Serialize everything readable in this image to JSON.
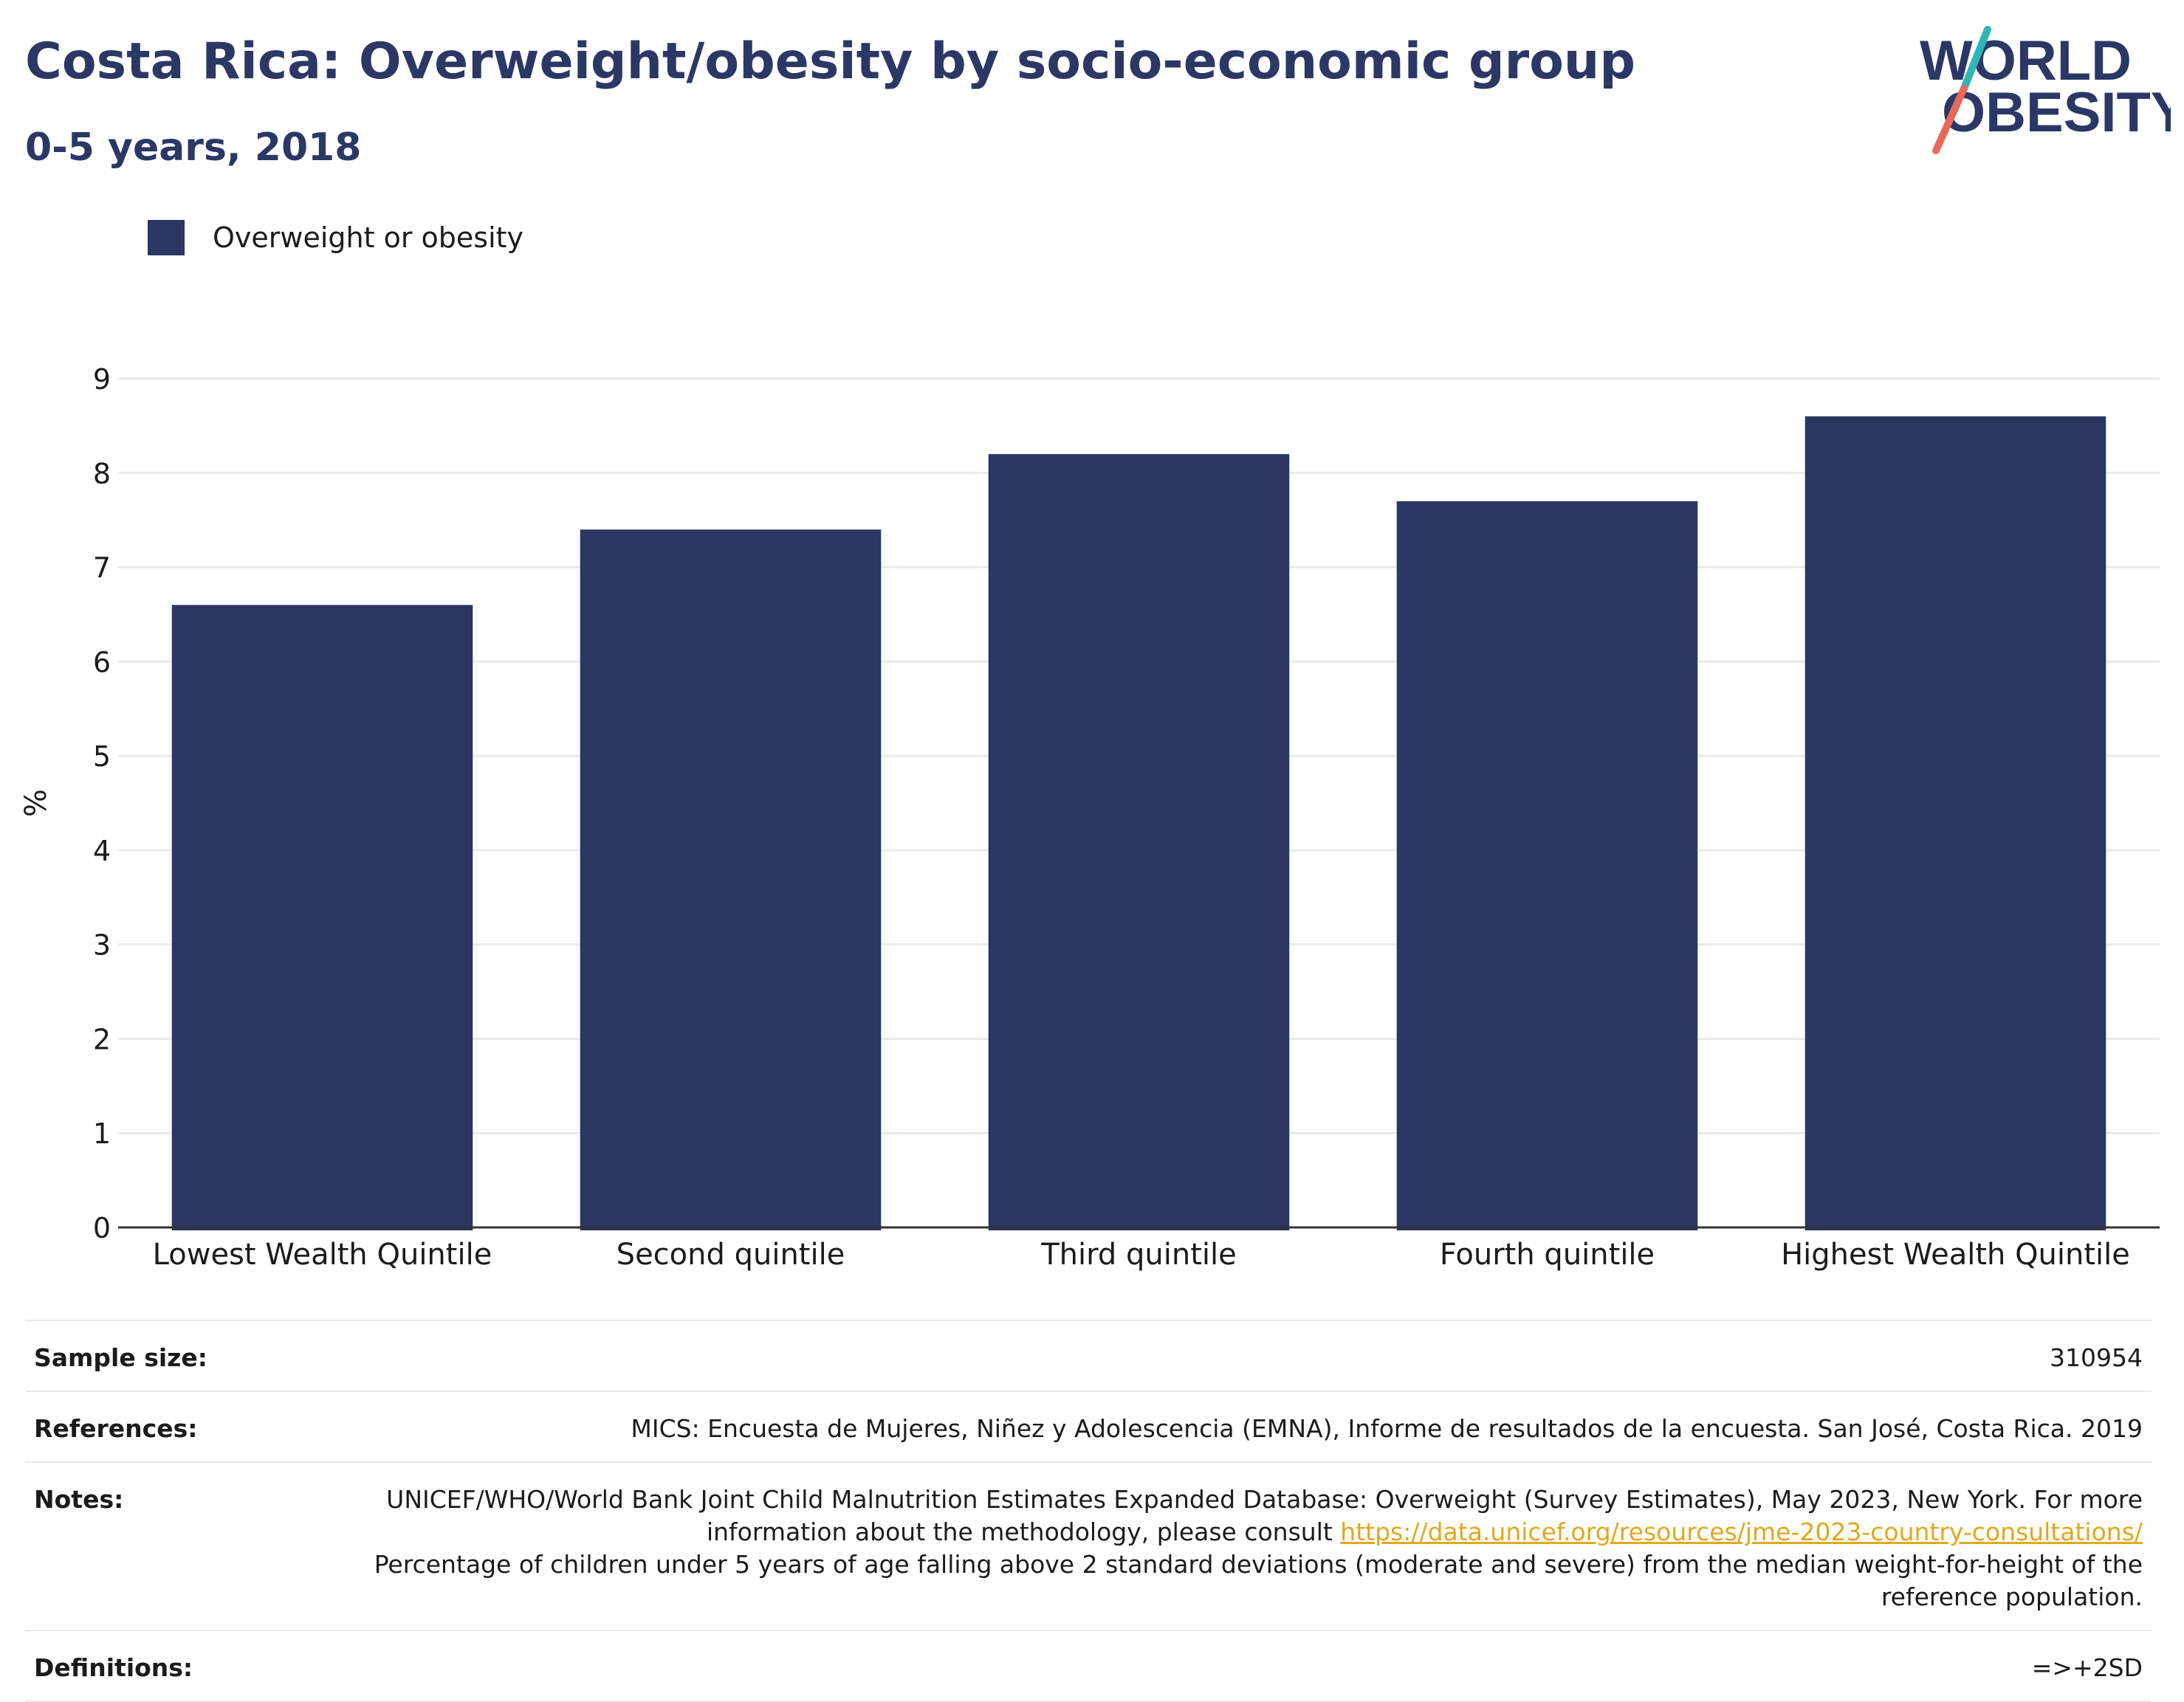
{
  "header": {
    "title": "Costa Rica: Overweight/obesity by socio-economic group",
    "subtitle": "0-5 years, 2018"
  },
  "logo": {
    "line1": "WORLD",
    "line2": "OBESITY",
    "colors": {
      "text": "#2b3866",
      "slash_top": "#2fb5b5",
      "slash_bottom": "#e8685a"
    }
  },
  "chart_data": {
    "type": "bar",
    "categories": [
      "Lowest Wealth Quintile",
      "Second quintile",
      "Third quintile",
      "Fourth quintile",
      "Highest Wealth Quintile"
    ],
    "series": [
      {
        "name": "Overweight or obesity",
        "values": [
          6.6,
          7.4,
          8.2,
          7.7,
          8.6
        ],
        "color": "#2b3663"
      }
    ],
    "ylabel": "%",
    "xlabel": "",
    "ylim": [
      0,
      9
    ],
    "yticks": [
      0,
      1,
      2,
      3,
      4,
      5,
      6,
      7,
      8,
      9
    ],
    "grid": true,
    "legend_position": "top-left"
  },
  "info": {
    "sample_size_label": "Sample size:",
    "sample_size_value": "310954",
    "references_label": "References:",
    "references_value": "MICS: Encuesta de Mujeres, Niñez y Adolescencia (EMNA), Informe de resultados de la encuesta. San José, Costa Rica. 2019",
    "notes_label": "Notes:",
    "notes_text1": "UNICEF/WHO/World Bank Joint Child Malnutrition Estimates Expanded Database: Overweight (Survey Estimates), May 2023, New York. For more information about the methodology, please consult ",
    "notes_link": "https://data.unicef.org/resources/jme-2023-country-consultations/",
    "notes_text2": "Percentage of children under 5 years of age falling above 2 standard deviations (moderate and severe) from the median weight-for-height of the reference population.",
    "definitions_label": "Definitions:",
    "definitions_value": "=>+2SD"
  }
}
